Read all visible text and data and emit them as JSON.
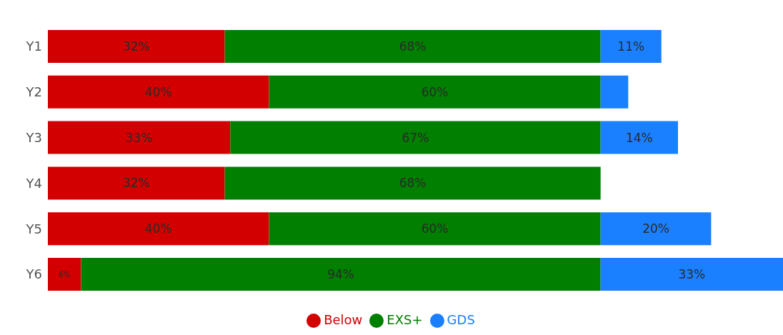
{
  "chart_data": {
    "type": "bar",
    "orientation": "horizontal",
    "stacked": true,
    "categories": [
      "Y1",
      "Y2",
      "Y3",
      "Y4",
      "Y5",
      "Y6"
    ],
    "xlim": [
      0,
      133
    ],
    "tick_labels": "y",
    "legend": "bottom",
    "grid": false,
    "series": [
      {
        "name": "Below",
        "color": "#d20000",
        "values": [
          32,
          40,
          33,
          32,
          40,
          6
        ],
        "value_labels": [
          "32%",
          "40%",
          "33%",
          "32%",
          "40%",
          "6%"
        ]
      },
      {
        "name": "EXS+",
        "color": "#007f00",
        "values": [
          68,
          60,
          67,
          68,
          60,
          94
        ],
        "value_labels": [
          "68%",
          "60%",
          "67%",
          "68%",
          "60%",
          "94%"
        ]
      },
      {
        "name": "GDS",
        "color": "#1a80ff",
        "values": [
          11,
          5,
          14,
          null,
          20,
          33
        ],
        "value_labels": [
          "11%",
          null,
          "14%",
          null,
          "20%",
          "33%"
        ]
      }
    ]
  }
}
